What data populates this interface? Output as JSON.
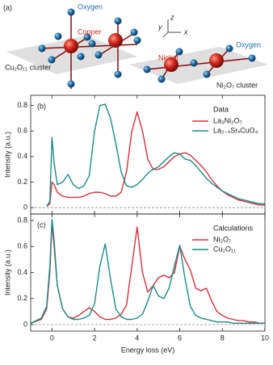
{
  "panel_a": {
    "label": "(a)",
    "oxygen_left": "Oxygen",
    "copper": "Copper",
    "cluster_left": "Cu₂O₁₁ cluster",
    "oxygen_right": "Oxygen",
    "nickel": "Nickel",
    "cluster_right": "Ni₂O₇ cluster",
    "axis_x": "x",
    "axis_y": "y",
    "axis_z": "z"
  },
  "chart_data": [
    {
      "type": "line",
      "panel_label": "(b)",
      "ylabel": "Intensity (a.u.)",
      "legend_title": "Data",
      "x": [
        -1,
        -0.5,
        -0.25,
        -0.1,
        0,
        0.1,
        0.25,
        0.5,
        0.75,
        1,
        1.25,
        1.5,
        1.75,
        2,
        2.25,
        2.5,
        2.75,
        3,
        3.25,
        3.5,
        3.75,
        4,
        4.25,
        4.5,
        4.75,
        5,
        5.25,
        5.5,
        5.75,
        6,
        6.25,
        6.5,
        6.75,
        7,
        7.25,
        7.5,
        7.75,
        8,
        8.25,
        8.5,
        8.75,
        9,
        9.25,
        9.5,
        9.75,
        10
      ],
      "series": [
        {
          "name": "La₃Ni₂O₇",
          "color": "#d4333b",
          "values": [
            null,
            null,
            0.01,
            0.03,
            0.2,
            0.18,
            0.12,
            0.09,
            0.08,
            0.08,
            0.08,
            0.09,
            0.11,
            0.12,
            0.12,
            0.11,
            0.09,
            0.09,
            0.12,
            0.28,
            0.6,
            0.75,
            0.6,
            0.38,
            0.3,
            0.3,
            0.32,
            0.36,
            0.4,
            0.42,
            0.43,
            0.41,
            0.37,
            0.33,
            0.28,
            0.22,
            0.17,
            0.13,
            0.1,
            0.08,
            0.06,
            0.05,
            0.04,
            0.03,
            0.02,
            0.02
          ]
        },
        {
          "name": "La₂₋ₓSrₓCuO₄",
          "color": "#1b8c8c",
          "values": [
            null,
            null,
            0.01,
            0.05,
            0.55,
            0.35,
            0.18,
            0.2,
            0.26,
            0.18,
            0.15,
            0.17,
            0.25,
            0.6,
            0.8,
            0.81,
            0.7,
            0.5,
            0.28,
            0.17,
            0.16,
            0.18,
            0.22,
            0.27,
            0.3,
            0.32,
            0.36,
            0.4,
            0.43,
            0.42,
            0.38,
            0.37,
            0.33,
            0.28,
            0.23,
            0.19,
            0.16,
            0.13,
            0.11,
            0.09,
            0.07,
            0.06,
            0.05,
            0.04,
            0.03,
            0.03
          ]
        }
      ],
      "xlim": [
        -1,
        10
      ],
      "xticks": [
        0,
        2,
        4,
        6,
        8,
        10
      ],
      "ylim": [
        -0.05,
        0.88
      ],
      "yticks": [
        0,
        0.2,
        0.4,
        0.6,
        0.8
      ],
      "zero_line": true,
      "legend": "upper right"
    },
    {
      "type": "line",
      "panel_label": "(c)",
      "ylabel": "Intensity (a.u.)",
      "xlabel": "Energy loss (eV)",
      "legend_title": "Calculations",
      "x": [
        -1,
        -0.5,
        -0.25,
        -0.1,
        0,
        0.1,
        0.25,
        0.5,
        0.75,
        1,
        1.25,
        1.5,
        1.75,
        2,
        2.25,
        2.5,
        2.75,
        3,
        3.25,
        3.5,
        3.75,
        4,
        4.25,
        4.5,
        4.75,
        5,
        5.25,
        5.5,
        5.75,
        6,
        6.25,
        6.5,
        6.75,
        7,
        7.25,
        7.5,
        7.75,
        8,
        8.25,
        8.5,
        8.75,
        9,
        9.25,
        9.5,
        9.75,
        10
      ],
      "series": [
        {
          "name": "Ni₂O₇",
          "color": "#d4333b",
          "values": [
            0.01,
            0.04,
            0.12,
            0.4,
            0.78,
            0.6,
            0.3,
            0.12,
            0.06,
            0.05,
            0.07,
            0.1,
            0.13,
            0.1,
            0.06,
            0.04,
            0.04,
            0.05,
            0.08,
            0.15,
            0.45,
            0.75,
            0.4,
            0.25,
            0.3,
            0.36,
            0.38,
            0.36,
            0.4,
            0.6,
            0.5,
            0.42,
            0.28,
            0.26,
            0.28,
            0.18,
            0.1,
            0.07,
            0.05,
            0.04,
            0.03,
            0.03,
            0.02,
            0.02,
            0.01,
            0.01
          ]
        },
        {
          "name": "Cu₂O₁₁",
          "color": "#1b8c8c",
          "values": [
            0.01,
            0.05,
            0.14,
            0.45,
            0.81,
            0.65,
            0.3,
            0.12,
            0.06,
            0.04,
            0.04,
            0.05,
            0.07,
            0.16,
            0.45,
            0.62,
            0.35,
            0.12,
            0.06,
            0.04,
            0.04,
            0.05,
            0.08,
            0.18,
            0.3,
            0.22,
            0.2,
            0.28,
            0.45,
            0.61,
            0.35,
            0.14,
            0.07,
            0.05,
            0.04,
            0.03,
            0.02,
            0.02,
            0.02,
            0.01,
            0.01,
            0.01,
            0.01,
            0.01,
            0.01,
            0.01
          ]
        }
      ],
      "xlim": [
        -1,
        10
      ],
      "xticks": [
        0,
        2,
        4,
        6,
        8,
        10
      ],
      "ylim": [
        -0.05,
        0.85
      ],
      "yticks": [
        0,
        0.2,
        0.4,
        0.6,
        0.8
      ],
      "zero_line": true,
      "legend": "upper right"
    }
  ]
}
